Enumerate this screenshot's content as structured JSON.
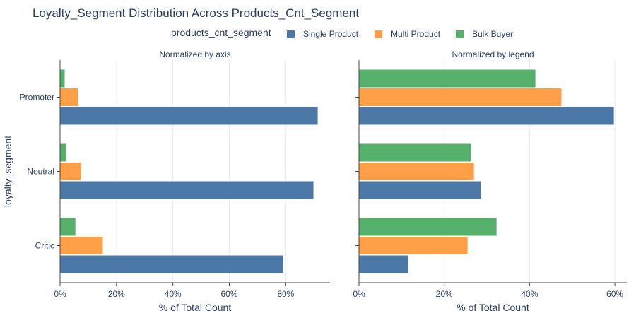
{
  "title": "Loyalty_Segment Distribution Across Products_Cnt_Segment",
  "legend": {
    "title": "products_cnt_segment",
    "items": [
      {
        "name": "Single Product",
        "color": "#4c78a8"
      },
      {
        "name": "Multi Product",
        "color": "#fe9f48"
      },
      {
        "name": "Bulk Buyer",
        "color": "#54b06a"
      }
    ]
  },
  "chart_data": [
    {
      "type": "bar",
      "orientation": "horizontal",
      "title": "Normalized by axis",
      "categories": [
        "Critic",
        "Neutral",
        "Promoter"
      ],
      "series": [
        {
          "name": "Single Product",
          "values": [
            79.2,
            89.9,
            91.4
          ]
        },
        {
          "name": "Multi Product",
          "values": [
            15.2,
            7.5,
            6.4
          ]
        },
        {
          "name": "Bulk Buyer",
          "values": [
            5.5,
            2.2,
            1.7
          ]
        }
      ],
      "xlabel": "% of Total Count",
      "ylabel": "loyalty_segment",
      "xlim": [
        0,
        95.7
      ],
      "xticks": [
        0,
        20,
        40,
        60,
        80
      ],
      "xtick_labels": [
        "0%",
        "20%",
        "40%",
        "60%",
        "80%"
      ]
    },
    {
      "type": "bar",
      "orientation": "horizontal",
      "title": "Normalized by legend",
      "categories": [
        "Critic",
        "Neutral",
        "Promoter"
      ],
      "series": [
        {
          "name": "Single Product",
          "values": [
            11.6,
            28.6,
            59.8
          ]
        },
        {
          "name": "Multi Product",
          "values": [
            25.5,
            27.0,
            47.5
          ]
        },
        {
          "name": "Bulk Buyer",
          "values": [
            32.3,
            26.3,
            41.4
          ]
        }
      ],
      "xlabel": "% of Total Count",
      "ylabel": "",
      "xlim": [
        0,
        62.8
      ],
      "xticks": [
        0,
        20,
        40,
        60
      ],
      "xtick_labels": [
        "0%",
        "20%",
        "40%",
        "60%"
      ]
    }
  ]
}
